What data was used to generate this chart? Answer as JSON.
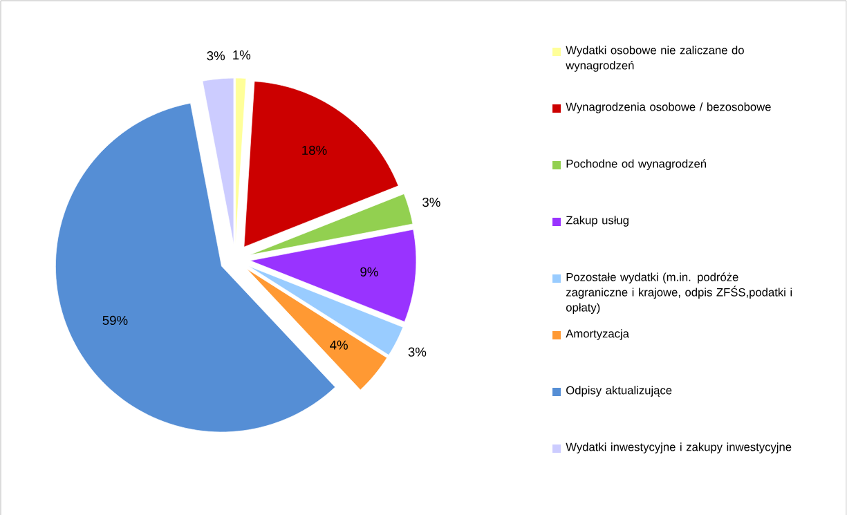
{
  "chart_data": {
    "type": "pie",
    "categories": [
      "Wydatki osobowe nie zaliczane do wynagrodzeń",
      "Wynagrodzenia osobowe / bezosobowe",
      "Pochodne od wynagrodzeń",
      "Zakup usług",
      "Pozostałe wydatki (m.in. podróże zagraniczne i krajowe, odpis ZFŚS,podatki i opłaty)",
      "Amortyzacja",
      "Odpisy aktualizujące",
      "Wydatki inwestycyjne i zakupy inwestycyjne"
    ],
    "values": [
      1,
      18,
      3,
      9,
      3,
      4,
      59,
      3
    ],
    "value_labels": [
      "1%",
      "18%",
      "3%",
      "9%",
      "3%",
      "4%",
      "59%",
      "3%"
    ],
    "colors": [
      "#ffff99",
      "#cc0000",
      "#92d050",
      "#9933ff",
      "#99ccff",
      "#ff9933",
      "#558ed5",
      "#ccccff"
    ],
    "legend": "right"
  }
}
